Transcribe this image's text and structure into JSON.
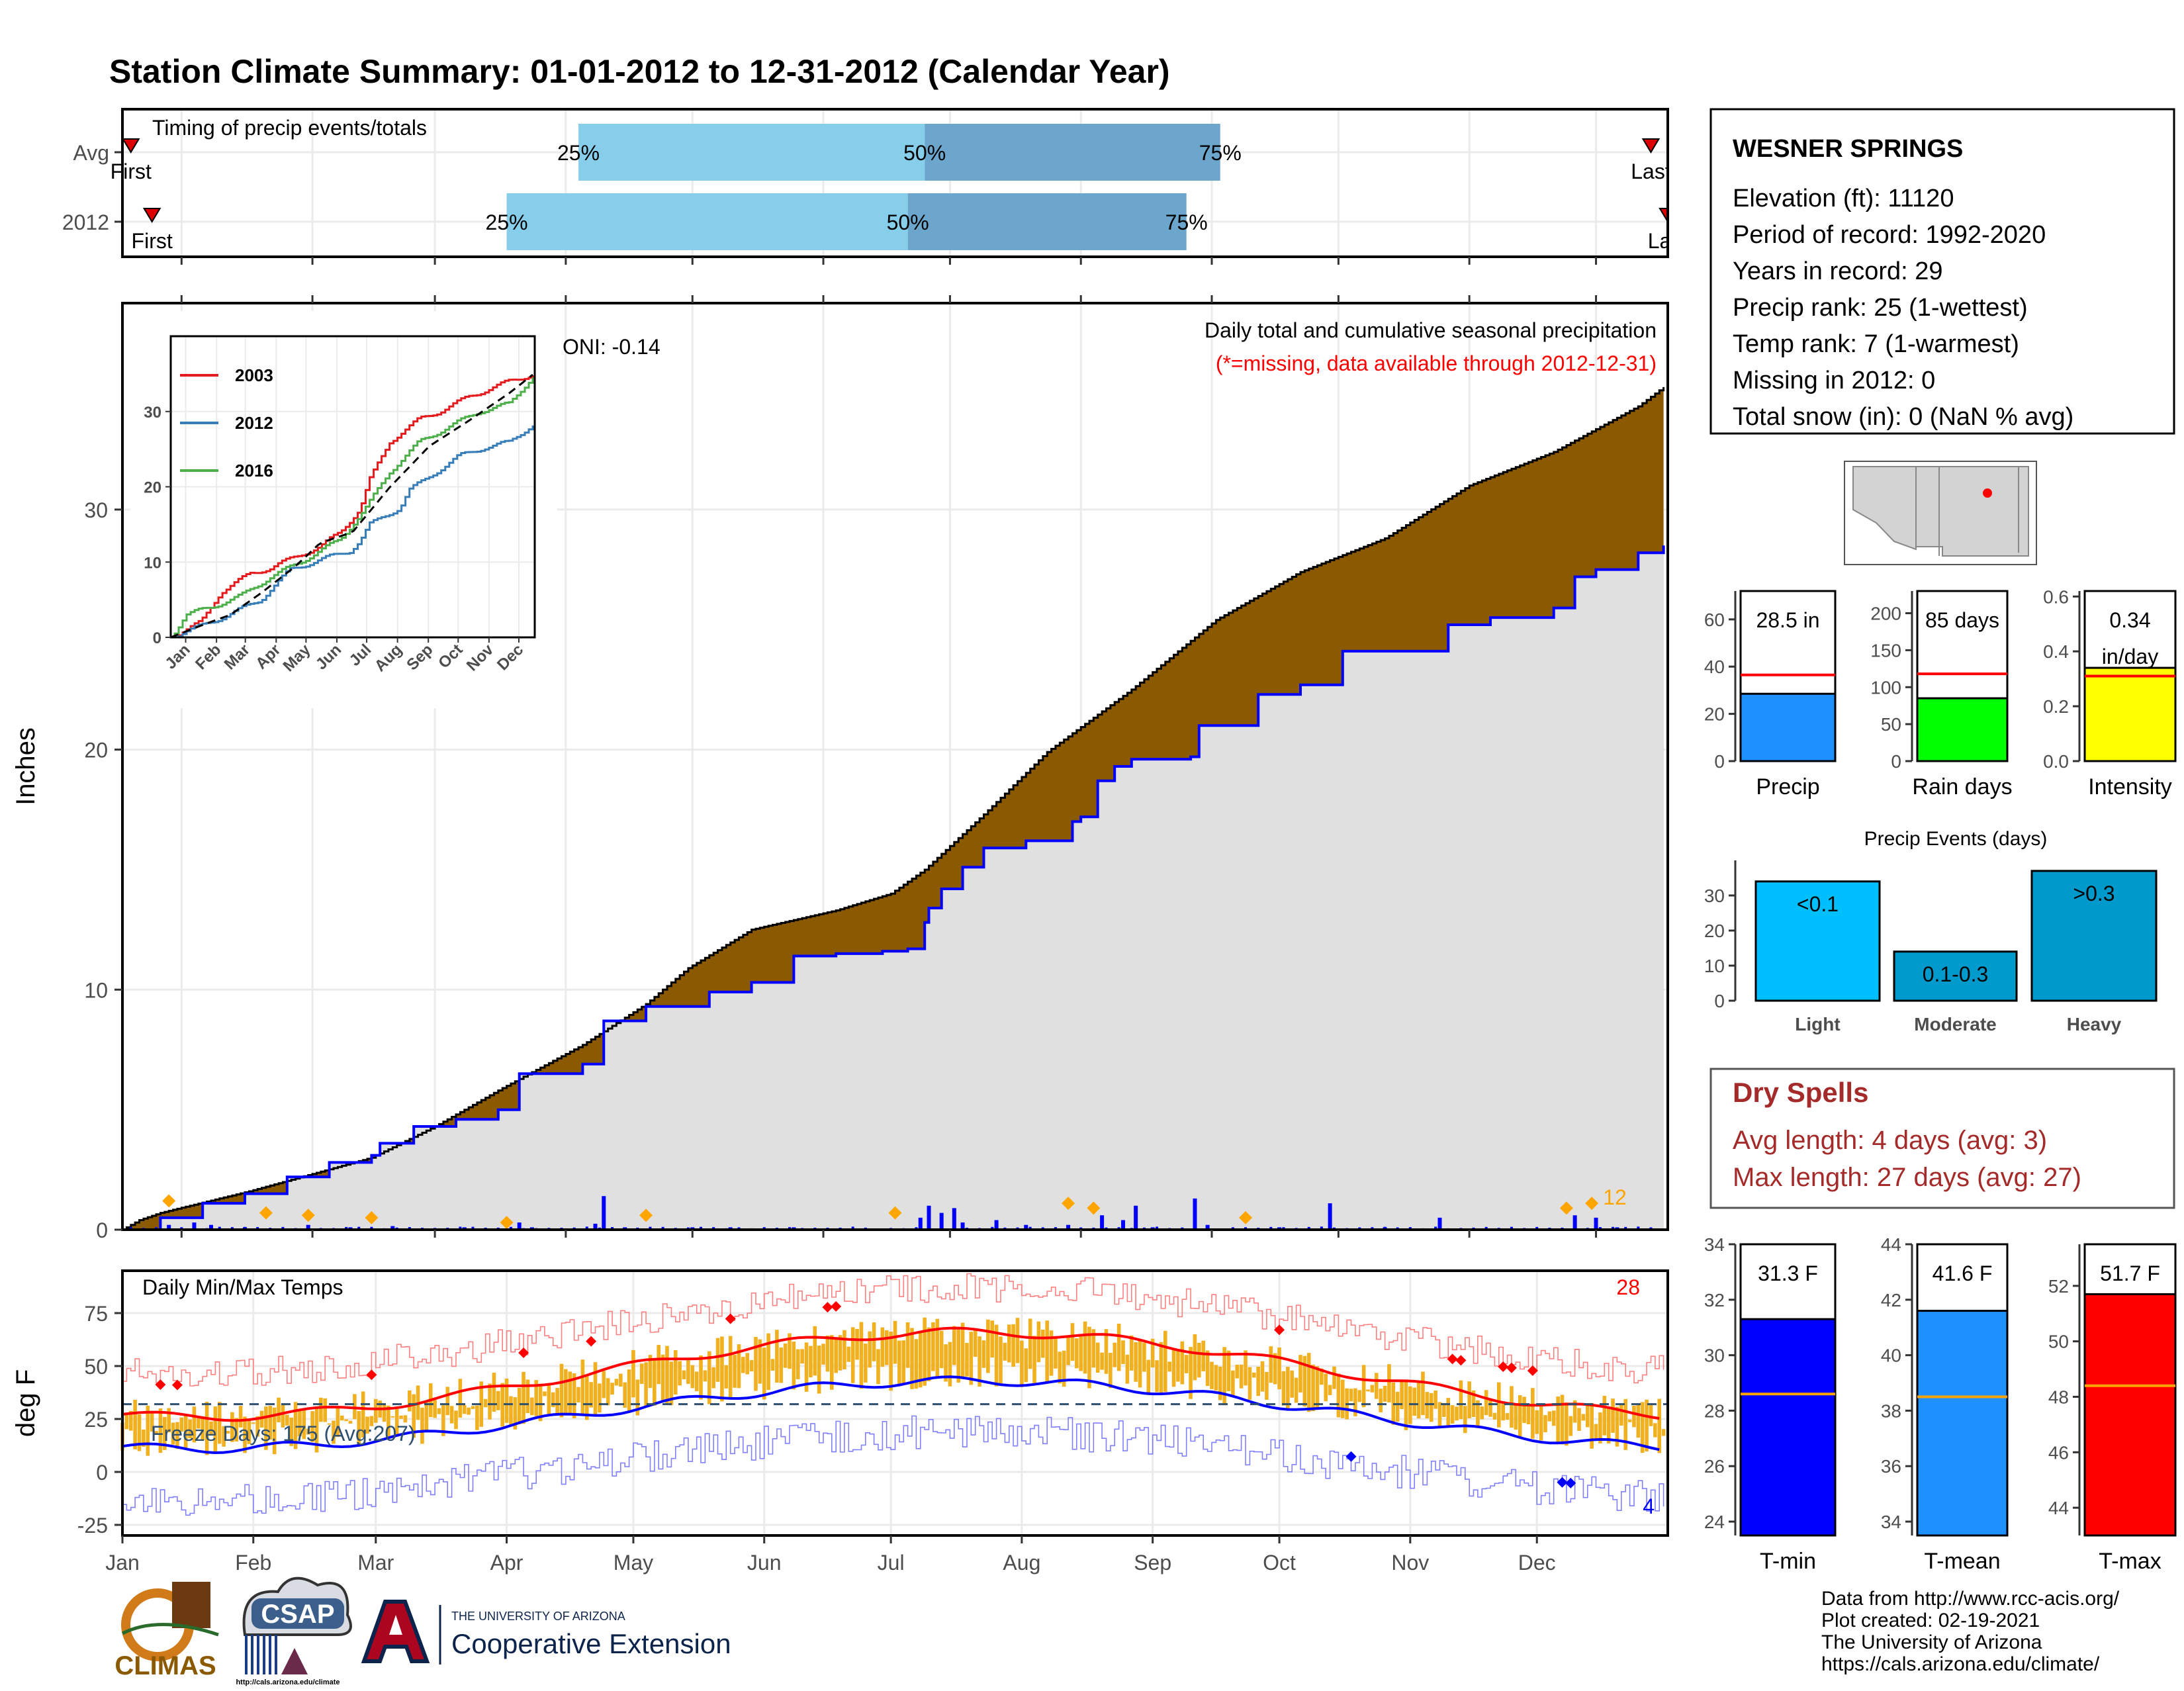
{
  "page": {
    "title": "Station Climate Summary: 01-01-2012 to 12-31-2012 (Calendar Year)",
    "credits": [
      "Data from http://www.rcc-acis.org/",
      "Plot created: 02-19-2021",
      "The University of Arizona",
      "https://cals.arizona.edu/climate/"
    ],
    "logos": {
      "climas": "CLIMAS",
      "csap": "CSAP",
      "csap_url": "http://cals.arizona.edu/climate",
      "ua_small": "THE UNIVERSITY OF ARIZONA",
      "ua_big": "Cooperative Extension"
    }
  },
  "station": {
    "name": "WESNER SPRINGS",
    "lines": [
      "Elevation (ft): 11120",
      "Period of record: 1992-2020",
      "Years in record: 29",
      "Precip rank: 25 (1-wettest)",
      "Temp rank: 7 (1-warmest)",
      "Missing in 2012: 0",
      "Total snow (in): 0 (NaN % avg)"
    ]
  },
  "dry_spells": {
    "title": "Dry Spells",
    "lines": [
      "Avg length: 4 days (avg: 3)",
      "Max length: 27 days (avg: 27)"
    ]
  },
  "colors": {
    "title": "#000080",
    "cumulative_2012": "#e0e0e0",
    "cumulative_deficit": "#8b5a00",
    "daily_bars": "#0000ff",
    "warm_dots": "#ffa500",
    "temp_bars": "#f0b020",
    "dry_spell_text": "#a52a2a"
  },
  "chart_data": [
    {
      "id": "timing",
      "type": "bar",
      "title": "Timing of precip events/totals",
      "categories": [
        "Avg",
        "2012"
      ],
      "ticks_x": [
        "Jan",
        "Feb",
        "Mar",
        "Apr",
        "May",
        "Jun",
        "Jul",
        "Aug",
        "Sep",
        "Oct",
        "Nov",
        "Dec"
      ],
      "series": [
        {
          "label": "Avg",
          "q25_doy": 109,
          "q50_doy": 191,
          "q75_doy": 261,
          "first_doy": 3,
          "last_doy": 363
        },
        {
          "label": "2012",
          "q25_doy": 92,
          "q50_doy": 187,
          "q75_doy": 253,
          "first_doy": 8,
          "last_doy": 367
        }
      ],
      "quartile_labels": [
        "25%",
        "50%",
        "75%"
      ],
      "marker_labels": {
        "first": "First",
        "last": "Last"
      },
      "xlim_doy": [
        1,
        367
      ]
    },
    {
      "id": "cumulative",
      "type": "area",
      "title": "Daily total and cumulative seasonal precipitation",
      "subtitle": "(*=missing, data available through 2012-12-31)",
      "ylabel": "Inches",
      "ylim": [
        0,
        38.6
      ],
      "yticks": [
        0,
        10,
        20,
        30
      ],
      "oni_label": "ONI: -0.14",
      "corner_label": "12",
      "cumulative_avg": [
        [
          1,
          0
        ],
        [
          5,
          0.4
        ],
        [
          10,
          0.7
        ],
        [
          31,
          1.6
        ],
        [
          60,
          3.0
        ],
        [
          75,
          4.3
        ],
        [
          91,
          5.9
        ],
        [
          110,
          7.7
        ],
        [
          125,
          9.4
        ],
        [
          135,
          10.9
        ],
        [
          150,
          12.5
        ],
        [
          170,
          13.3
        ],
        [
          183,
          14.0
        ],
        [
          191,
          15.0
        ],
        [
          205,
          17.3
        ],
        [
          220,
          19.9
        ],
        [
          240,
          22.5
        ],
        [
          260,
          25.4
        ],
        [
          280,
          27.4
        ],
        [
          300,
          28.8
        ],
        [
          320,
          31.0
        ],
        [
          340,
          32.4
        ],
        [
          360,
          34.3
        ],
        [
          366,
          35.1
        ]
      ],
      "cumulative_2012": [
        [
          1,
          0
        ],
        [
          10,
          0.5
        ],
        [
          20,
          1.1
        ],
        [
          30,
          1.5
        ],
        [
          40,
          2.2
        ],
        [
          50,
          2.8
        ],
        [
          60,
          3.1
        ],
        [
          62,
          3.6
        ],
        [
          70,
          4.3
        ],
        [
          80,
          4.6
        ],
        [
          90,
          5.0
        ],
        [
          95,
          6.5
        ],
        [
          110,
          6.9
        ],
        [
          115,
          8.7
        ],
        [
          125,
          9.3
        ],
        [
          140,
          9.9
        ],
        [
          150,
          10.3
        ],
        [
          160,
          11.4
        ],
        [
          170,
          11.5
        ],
        [
          180,
          11.5
        ],
        [
          181,
          11.6
        ],
        [
          185,
          11.6
        ],
        [
          187,
          11.7
        ],
        [
          191,
          12.8
        ],
        [
          192,
          13.4
        ],
        [
          195,
          14.2
        ],
        [
          200,
          15.1
        ],
        [
          205,
          15.9
        ],
        [
          215,
          16.2
        ],
        [
          226,
          17.0
        ],
        [
          228,
          17.2
        ],
        [
          232,
          18.7
        ],
        [
          236,
          19.3
        ],
        [
          240,
          19.6
        ],
        [
          254,
          19.7
        ],
        [
          256,
          21.0
        ],
        [
          270,
          22.3
        ],
        [
          280,
          22.7
        ],
        [
          285,
          22.7
        ],
        [
          290,
          24.1
        ],
        [
          310,
          24.1
        ],
        [
          315,
          25.2
        ],
        [
          325,
          25.5
        ],
        [
          340,
          25.9
        ],
        [
          345,
          27.2
        ],
        [
          350,
          27.5
        ],
        [
          360,
          28.2
        ],
        [
          366,
          28.5
        ]
      ],
      "daily_spikes": [
        [
          12,
          0.2
        ],
        [
          18,
          0.3
        ],
        [
          22,
          0.2
        ],
        [
          30,
          0.1
        ],
        [
          45,
          0.2
        ],
        [
          55,
          0.1
        ],
        [
          65,
          0.15
        ],
        [
          82,
          0.1
        ],
        [
          95,
          0.3
        ],
        [
          98,
          0.1
        ],
        [
          113,
          0.25
        ],
        [
          115,
          1.4
        ],
        [
          120,
          0.1
        ],
        [
          136,
          0.1
        ],
        [
          145,
          0.1
        ],
        [
          160,
          0.1
        ],
        [
          190,
          0.5
        ],
        [
          192,
          1.0
        ],
        [
          195,
          0.7
        ],
        [
          198,
          0.9
        ],
        [
          200,
          0.3
        ],
        [
          208,
          0.4
        ],
        [
          215,
          0.2
        ],
        [
          225,
          0.2
        ],
        [
          233,
          0.6
        ],
        [
          238,
          0.4
        ],
        [
          241,
          1.0
        ],
        [
          245,
          0.1
        ],
        [
          255,
          1.3
        ],
        [
          258,
          0.2
        ],
        [
          275,
          0.1
        ],
        [
          287,
          1.1
        ],
        [
          300,
          0.1
        ],
        [
          313,
          0.5
        ],
        [
          345,
          0.6
        ],
        [
          350,
          0.5
        ],
        [
          355,
          0.1
        ]
      ],
      "warm_dots": [
        [
          12,
          1.2
        ],
        [
          35,
          0.7
        ],
        [
          45,
          0.6
        ],
        [
          60,
          0.5
        ],
        [
          92,
          0.3
        ],
        [
          125,
          0.6
        ],
        [
          184,
          0.7
        ],
        [
          225,
          1.1
        ],
        [
          231,
          0.9
        ],
        [
          267,
          0.5
        ],
        [
          343,
          0.9
        ],
        [
          349,
          1.1
        ]
      ]
    },
    {
      "id": "inset",
      "type": "line",
      "ylim": [
        0,
        40
      ],
      "yticks": [
        0,
        10,
        20,
        30
      ],
      "ticks_x": [
        "Jan",
        "Feb",
        "Mar",
        "Apr",
        "May",
        "Jun",
        "Jul",
        "Aug",
        "Sep",
        "Oct",
        "Nov",
        "Dec"
      ],
      "series": [
        {
          "name": "2003",
          "color": "#e41a1c",
          "points": [
            [
              0,
              0
            ],
            [
              30,
              2
            ],
            [
              50,
              6
            ],
            [
              80,
              8.5
            ],
            [
              100,
              9.2
            ],
            [
              130,
              11
            ],
            [
              150,
              12
            ],
            [
              170,
              14
            ],
            [
              190,
              17
            ],
            [
              200,
              21
            ],
            [
              220,
              26
            ],
            [
              250,
              29
            ],
            [
              270,
              30
            ],
            [
              300,
              32
            ],
            [
              340,
              34
            ],
            [
              366,
              35
            ]
          ]
        },
        {
          "name": "2012",
          "color": "#377eb8",
          "points": [
            [
              0,
              0
            ],
            [
              30,
              1.5
            ],
            [
              60,
              3.1
            ],
            [
              90,
              5
            ],
            [
              120,
              9
            ],
            [
              150,
              10.3
            ],
            [
              180,
              11.5
            ],
            [
              190,
              12.8
            ],
            [
              200,
              15
            ],
            [
              230,
              17.2
            ],
            [
              240,
              19.6
            ],
            [
              256,
              21
            ],
            [
              290,
              24.1
            ],
            [
              315,
              25.2
            ],
            [
              340,
              25.9
            ],
            [
              366,
              28.5
            ]
          ]
        },
        {
          "name": "2016",
          "color": "#4daf4a",
          "points": [
            [
              0,
              0
            ],
            [
              15,
              3
            ],
            [
              40,
              4
            ],
            [
              70,
              5.5
            ],
            [
              100,
              8
            ],
            [
              130,
              10
            ],
            [
              150,
              11.5
            ],
            [
              170,
              13
            ],
            [
              195,
              17
            ],
            [
              220,
              22
            ],
            [
              250,
              26
            ],
            [
              280,
              28
            ],
            [
              310,
              30
            ],
            [
              340,
              31
            ],
            [
              366,
              35
            ]
          ]
        },
        {
          "name": "avg",
          "color": "#000000",
          "dashed": true,
          "points": [
            [
              0,
              0
            ],
            [
              31,
              1.6
            ],
            [
              60,
              3.0
            ],
            [
              91,
              5.9
            ],
            [
              125,
              9.4
            ],
            [
              150,
              12.5
            ],
            [
              183,
              14.0
            ],
            [
              220,
              19.9
            ],
            [
              260,
              25.4
            ],
            [
              300,
              28.8
            ],
            [
              340,
              32.4
            ],
            [
              366,
              35.1
            ]
          ]
        }
      ]
    },
    {
      "id": "temps",
      "type": "line",
      "title": "Daily Min/Max Temps",
      "ylabel": "deg F",
      "ylim": [
        -30,
        95
      ],
      "yticks": [
        -25,
        0,
        25,
        50,
        75
      ],
      "months": [
        "Jan",
        "Feb",
        "Mar",
        "Apr",
        "May",
        "Jun",
        "Jul",
        "Aug",
        "Sep",
        "Oct",
        "Nov",
        "Dec"
      ],
      "freeze_label": "Freeze Days: 175 (Avg:207)",
      "freeze_line": 32,
      "hot_count": "28",
      "cold_count": "4"
    },
    {
      "id": "precip_summary",
      "type": "bar",
      "panels": [
        {
          "category": "Precip",
          "value": 28.5,
          "value_label": "28.5 in",
          "avg": 36.5,
          "ylim": [
            0,
            72
          ],
          "yticks": [
            0,
            20,
            40,
            60
          ],
          "color": "#1e90ff"
        },
        {
          "category": "Rain days",
          "value": 85,
          "value_label": "85 days",
          "avg": 118,
          "ylim": [
            0,
            230
          ],
          "yticks": [
            0,
            50,
            100,
            150,
            200
          ],
          "color": "#00ff00"
        },
        {
          "category": "Intensity",
          "value": 0.34,
          "value_label": "0.34\nin/day",
          "avg": 0.31,
          "ylim": [
            0,
            0.62
          ],
          "yticks": [
            0.0,
            0.2,
            0.4,
            0.6
          ],
          "color": "#ffff00"
        }
      ]
    },
    {
      "id": "precip_events",
      "type": "bar",
      "title": "Precip Events (days)",
      "categories": [
        "Light",
        "Moderate",
        "Heavy"
      ],
      "values": [
        34,
        14,
        37
      ],
      "labels": [
        "<0.1",
        "0.1-0.3",
        ">0.3"
      ],
      "ylim": [
        0,
        40
      ],
      "yticks": [
        0,
        10,
        20,
        30
      ]
    },
    {
      "id": "temp_summary",
      "type": "bar",
      "panels": [
        {
          "category": "T-min",
          "value": 31.3,
          "value_label": "31.3 F",
          "avg": 28.6,
          "ylim": [
            23.5,
            34
          ],
          "yticks": [
            24,
            26,
            28,
            30,
            32,
            34
          ],
          "color": "#0000ff"
        },
        {
          "category": "T-mean",
          "value": 41.6,
          "value_label": "41.6 F",
          "avg": 38.5,
          "ylim": [
            33.5,
            44
          ],
          "yticks": [
            34,
            36,
            38,
            40,
            42,
            44
          ],
          "color": "#1e90ff"
        },
        {
          "category": "T-max",
          "value": 51.7,
          "value_label": "51.7 F",
          "avg": 48.4,
          "ylim": [
            43,
            53.5
          ],
          "yticks": [
            44,
            46,
            48,
            50,
            52
          ],
          "color": "#ff0000"
        }
      ]
    }
  ]
}
